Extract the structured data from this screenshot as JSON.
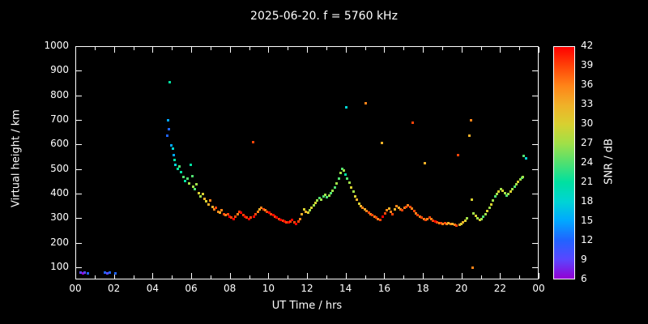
{
  "title": "2025-06-20. f = 5760 kHz",
  "colors": {
    "background": "#000000",
    "foreground": "#ffffff"
  },
  "chart_data": {
    "type": "scatter",
    "title": "2025-06-20. f = 5760 kHz",
    "xlabel": "UT Time / hrs",
    "ylabel": "Virtual height / km",
    "xlim": [
      0,
      24
    ],
    "ylim": [
      50,
      1000
    ],
    "grid": false,
    "xticks": {
      "values": [
        0,
        2,
        4,
        6,
        8,
        10,
        12,
        14,
        16,
        18,
        20,
        22,
        24
      ],
      "labels": [
        "00",
        "02",
        "04",
        "06",
        "08",
        "10",
        "12",
        "14",
        "16",
        "18",
        "20",
        "22",
        "00"
      ]
    },
    "yticks": [
      100,
      200,
      300,
      400,
      500,
      600,
      700,
      800,
      900,
      1000
    ],
    "colorbar": {
      "label": "SNR / dB",
      "min": 6,
      "max": 42,
      "ticks": [
        6,
        9,
        12,
        15,
        18,
        21,
        24,
        27,
        30,
        33,
        36,
        39,
        42
      ],
      "stops": [
        [
          6,
          "#9400d3"
        ],
        [
          9,
          "#5a46ff"
        ],
        [
          12,
          "#2064ff"
        ],
        [
          15,
          "#00a8ff"
        ],
        [
          18,
          "#00d4d4"
        ],
        [
          21,
          "#00e0a0"
        ],
        [
          24,
          "#50e070"
        ],
        [
          27,
          "#a0e048"
        ],
        [
          30,
          "#d8d030"
        ],
        [
          33,
          "#f0b028"
        ],
        [
          36,
          "#ff8418"
        ],
        [
          39,
          "#ff4408"
        ],
        [
          42,
          "#ff0000"
        ]
      ]
    },
    "points_format": [
      "ut_hours",
      "virtual_height_km",
      "snr_db"
    ],
    "points": [
      [
        0.25,
        80,
        9
      ],
      [
        0.35,
        78,
        6
      ],
      [
        0.45,
        82,
        9
      ],
      [
        0.6,
        78,
        12
      ],
      [
        1.5,
        80,
        12
      ],
      [
        1.6,
        78,
        9
      ],
      [
        1.75,
        80,
        12
      ],
      [
        2.05,
        78,
        12
      ],
      [
        4.7,
        640,
        12
      ],
      [
        4.75,
        700,
        15
      ],
      [
        4.8,
        665,
        12
      ],
      [
        4.85,
        855,
        21
      ],
      [
        4.95,
        600,
        15
      ],
      [
        5.0,
        585,
        18
      ],
      [
        5.05,
        560,
        15
      ],
      [
        5.1,
        540,
        21
      ],
      [
        5.15,
        520,
        18
      ],
      [
        5.25,
        505,
        21
      ],
      [
        5.35,
        515,
        24
      ],
      [
        5.45,
        490,
        21
      ],
      [
        5.55,
        470,
        24
      ],
      [
        5.65,
        455,
        21
      ],
      [
        5.75,
        465,
        24
      ],
      [
        5.85,
        445,
        27
      ],
      [
        5.95,
        520,
        21
      ],
      [
        6.0,
        475,
        24
      ],
      [
        6.05,
        430,
        27
      ],
      [
        6.15,
        420,
        24
      ],
      [
        6.25,
        440,
        27
      ],
      [
        6.35,
        405,
        30
      ],
      [
        6.45,
        390,
        27
      ],
      [
        6.55,
        400,
        30
      ],
      [
        6.65,
        380,
        33
      ],
      [
        6.75,
        370,
        30
      ],
      [
        6.85,
        360,
        33
      ],
      [
        6.95,
        375,
        36
      ],
      [
        7.05,
        350,
        33
      ],
      [
        7.15,
        340,
        36
      ],
      [
        7.25,
        345,
        39
      ],
      [
        7.35,
        330,
        36
      ],
      [
        7.45,
        325,
        33
      ],
      [
        7.55,
        335,
        36
      ],
      [
        7.65,
        320,
        39
      ],
      [
        7.75,
        315,
        36
      ],
      [
        7.85,
        320,
        39
      ],
      [
        7.95,
        310,
        42
      ],
      [
        8.05,
        305,
        39
      ],
      [
        8.15,
        300,
        42
      ],
      [
        8.25,
        310,
        39
      ],
      [
        8.35,
        320,
        36
      ],
      [
        8.45,
        330,
        39
      ],
      [
        8.55,
        325,
        42
      ],
      [
        8.65,
        315,
        39
      ],
      [
        8.75,
        310,
        42
      ],
      [
        8.85,
        305,
        39
      ],
      [
        8.95,
        300,
        42
      ],
      [
        9.05,
        305,
        39
      ],
      [
        9.15,
        612,
        39
      ],
      [
        9.2,
        310,
        42
      ],
      [
        9.3,
        320,
        39
      ],
      [
        9.4,
        330,
        36
      ],
      [
        9.5,
        340,
        33
      ],
      [
        9.6,
        345,
        36
      ],
      [
        9.7,
        340,
        39
      ],
      [
        9.8,
        335,
        36
      ],
      [
        9.9,
        330,
        39
      ],
      [
        10.0,
        325,
        42
      ],
      [
        10.1,
        320,
        39
      ],
      [
        10.2,
        315,
        42
      ],
      [
        10.3,
        310,
        39
      ],
      [
        10.4,
        305,
        42
      ],
      [
        10.5,
        300,
        39
      ],
      [
        10.6,
        295,
        42
      ],
      [
        10.7,
        292,
        39
      ],
      [
        10.8,
        288,
        42
      ],
      [
        10.9,
        285,
        39
      ],
      [
        11.0,
        285,
        42
      ],
      [
        11.1,
        290,
        39
      ],
      [
        11.2,
        295,
        42
      ],
      [
        11.3,
        285,
        39
      ],
      [
        11.4,
        280,
        42
      ],
      [
        11.5,
        288,
        39
      ],
      [
        11.6,
        300,
        36
      ],
      [
        11.7,
        318,
        33
      ],
      [
        11.8,
        338,
        30
      ],
      [
        11.9,
        330,
        33
      ],
      [
        12.0,
        325,
        30
      ],
      [
        12.1,
        335,
        27
      ],
      [
        12.2,
        345,
        30
      ],
      [
        12.3,
        355,
        27
      ],
      [
        12.4,
        365,
        30
      ],
      [
        12.5,
        375,
        27
      ],
      [
        12.6,
        385,
        24
      ],
      [
        12.7,
        378,
        27
      ],
      [
        12.8,
        390,
        24
      ],
      [
        12.9,
        398,
        27
      ],
      [
        13.0,
        388,
        24
      ],
      [
        13.1,
        395,
        27
      ],
      [
        13.2,
        405,
        24
      ],
      [
        13.3,
        415,
        27
      ],
      [
        13.4,
        428,
        24
      ],
      [
        13.5,
        445,
        27
      ],
      [
        13.6,
        465,
        24
      ],
      [
        13.7,
        488,
        27
      ],
      [
        13.8,
        505,
        24
      ],
      [
        13.85,
        498,
        27
      ],
      [
        13.95,
        480,
        21
      ],
      [
        14.0,
        755,
        18
      ],
      [
        14.05,
        465,
        24
      ],
      [
        14.15,
        448,
        27
      ],
      [
        14.25,
        428,
        30
      ],
      [
        14.35,
        410,
        27
      ],
      [
        14.45,
        392,
        30
      ],
      [
        14.55,
        378,
        33
      ],
      [
        14.65,
        362,
        30
      ],
      [
        14.75,
        352,
        33
      ],
      [
        14.85,
        344,
        36
      ],
      [
        14.95,
        338,
        33
      ],
      [
        15.0,
        770,
        36
      ],
      [
        15.05,
        332,
        36
      ],
      [
        15.15,
        326,
        39
      ],
      [
        15.25,
        320,
        36
      ],
      [
        15.35,
        315,
        39
      ],
      [
        15.45,
        310,
        36
      ],
      [
        15.55,
        305,
        39
      ],
      [
        15.65,
        300,
        36
      ],
      [
        15.75,
        296,
        39
      ],
      [
        15.85,
        610,
        33
      ],
      [
        15.9,
        310,
        42
      ],
      [
        16.0,
        322,
        39
      ],
      [
        16.1,
        334,
        36
      ],
      [
        16.2,
        342,
        33
      ],
      [
        16.3,
        330,
        36
      ],
      [
        16.4,
        318,
        39
      ],
      [
        16.5,
        340,
        33
      ],
      [
        16.6,
        352,
        36
      ],
      [
        16.7,
        346,
        33
      ],
      [
        16.8,
        338,
        36
      ],
      [
        16.9,
        334,
        39
      ],
      [
        17.0,
        344,
        36
      ],
      [
        17.1,
        350,
        39
      ],
      [
        17.2,
        356,
        36
      ],
      [
        17.3,
        350,
        39
      ],
      [
        17.4,
        342,
        36
      ],
      [
        17.45,
        690,
        39
      ],
      [
        17.5,
        332,
        39
      ],
      [
        17.6,
        322,
        36
      ],
      [
        17.7,
        315,
        39
      ],
      [
        17.8,
        310,
        36
      ],
      [
        17.9,
        306,
        39
      ],
      [
        18.0,
        300,
        36
      ],
      [
        18.05,
        528,
        33
      ],
      [
        18.1,
        296,
        39
      ],
      [
        18.2,
        300,
        36
      ],
      [
        18.3,
        305,
        39
      ],
      [
        18.4,
        299,
        36
      ],
      [
        18.5,
        294,
        39
      ],
      [
        18.6,
        290,
        42
      ],
      [
        18.7,
        286,
        39
      ],
      [
        18.8,
        284,
        36
      ],
      [
        18.9,
        281,
        39
      ],
      [
        19.0,
        280,
        36
      ],
      [
        19.1,
        284,
        39
      ],
      [
        19.2,
        280,
        36
      ],
      [
        19.3,
        284,
        33
      ],
      [
        19.4,
        279,
        36
      ],
      [
        19.5,
        280,
        33
      ],
      [
        19.6,
        276,
        36
      ],
      [
        19.7,
        274,
        39
      ],
      [
        19.8,
        560,
        39
      ],
      [
        19.85,
        276,
        33
      ],
      [
        19.95,
        280,
        30
      ],
      [
        20.05,
        286,
        33
      ],
      [
        20.15,
        292,
        30
      ],
      [
        20.25,
        302,
        27
      ],
      [
        20.35,
        640,
        33
      ],
      [
        20.45,
        700,
        36
      ],
      [
        20.5,
        378,
        30
      ],
      [
        20.55,
        100,
        36
      ],
      [
        20.6,
        322,
        27
      ],
      [
        20.7,
        312,
        30
      ],
      [
        20.8,
        302,
        27
      ],
      [
        20.9,
        296,
        30
      ],
      [
        21.0,
        300,
        27
      ],
      [
        21.1,
        310,
        24
      ],
      [
        21.2,
        320,
        27
      ],
      [
        21.3,
        332,
        30
      ],
      [
        21.4,
        346,
        27
      ],
      [
        21.5,
        360,
        30
      ],
      [
        21.6,
        376,
        27
      ],
      [
        21.7,
        390,
        24
      ],
      [
        21.8,
        402,
        27
      ],
      [
        21.9,
        412,
        30
      ],
      [
        22.0,
        420,
        27
      ],
      [
        22.1,
        414,
        30
      ],
      [
        22.2,
        404,
        27
      ],
      [
        22.3,
        396,
        24
      ],
      [
        22.4,
        402,
        27
      ],
      [
        22.5,
        412,
        30
      ],
      [
        22.6,
        422,
        27
      ],
      [
        22.7,
        432,
        24
      ],
      [
        22.8,
        442,
        27
      ],
      [
        22.9,
        452,
        30
      ],
      [
        23.0,
        462,
        27
      ],
      [
        23.1,
        468,
        24
      ],
      [
        23.15,
        472,
        27
      ],
      [
        23.2,
        555,
        24
      ],
      [
        23.3,
        545,
        18
      ]
    ]
  }
}
